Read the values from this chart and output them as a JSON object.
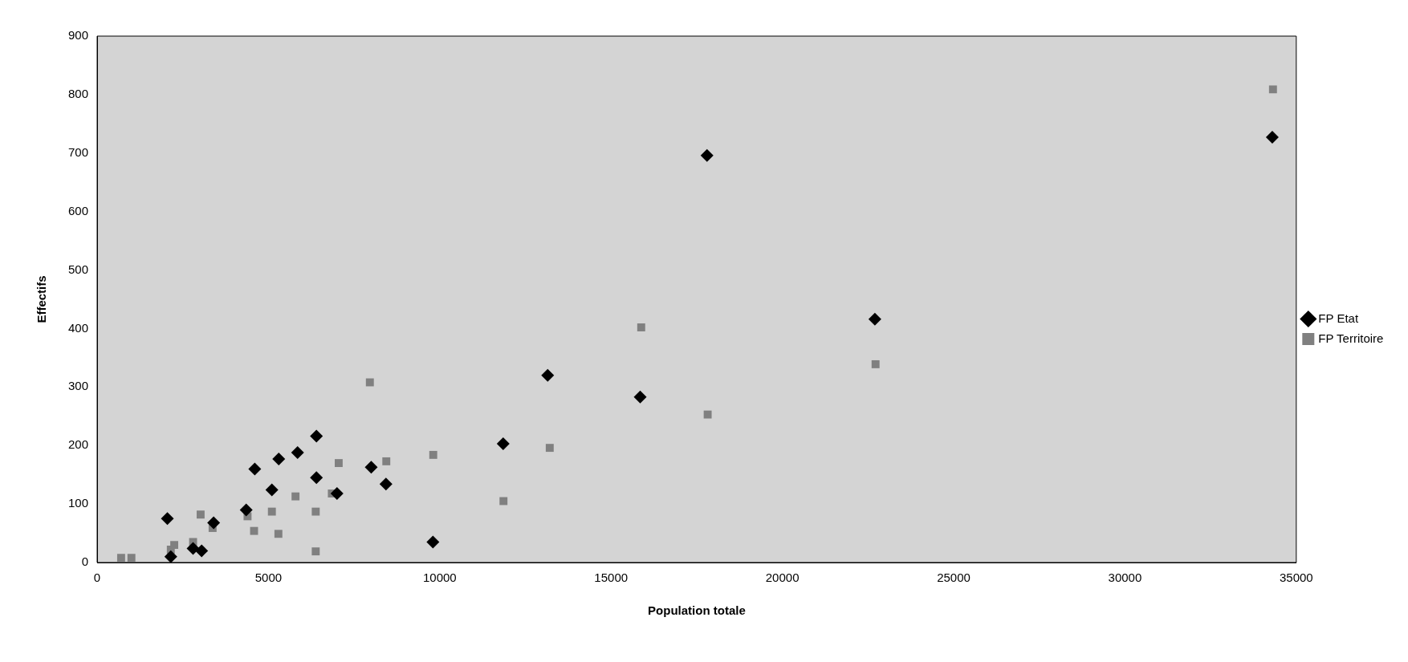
{
  "chart_data": {
    "type": "scatter",
    "xlabel": "Population totale",
    "ylabel": "Effectifs",
    "xlim": [
      0,
      35000
    ],
    "xticks": [
      0,
      5000,
      10000,
      15000,
      20000,
      25000,
      30000,
      35000
    ],
    "ylim": [
      0,
      900
    ],
    "yticks": [
      0,
      100,
      200,
      300,
      400,
      500,
      600,
      700,
      800,
      900
    ],
    "grid": false,
    "legend": "right",
    "series": [
      {
        "name": "FP Etat",
        "color": "#000000",
        "marker": "diamond",
        "x": [
          2050,
          2150,
          2800,
          3050,
          3400,
          4350,
          4600,
          5100,
          5300,
          5850,
          6400,
          6400,
          7000,
          8000,
          8430,
          9800,
          11850,
          13150,
          15850,
          17800,
          22700,
          34300
        ],
        "values": [
          75,
          10,
          24,
          20,
          68,
          90,
          160,
          124,
          177,
          188,
          216,
          145,
          118,
          163,
          134,
          35,
          203,
          320,
          283,
          696,
          416,
          727
        ]
      },
      {
        "name": "FP Territoire",
        "color": "#808080",
        "marker": "square",
        "x": [
          700,
          1000,
          2150,
          2250,
          2800,
          3020,
          3370,
          4390,
          4580,
          5100,
          5290,
          5790,
          6380,
          6380,
          7050,
          6850,
          7960,
          8440,
          9810,
          11860,
          13210,
          15880,
          17820,
          22720,
          34320
        ],
        "values": [
          8,
          8,
          22,
          30,
          35,
          82,
          59,
          79,
          54,
          87,
          49,
          113,
          87,
          19,
          170,
          118,
          308,
          173,
          184,
          105,
          196,
          402,
          253,
          339,
          809
        ]
      }
    ]
  }
}
